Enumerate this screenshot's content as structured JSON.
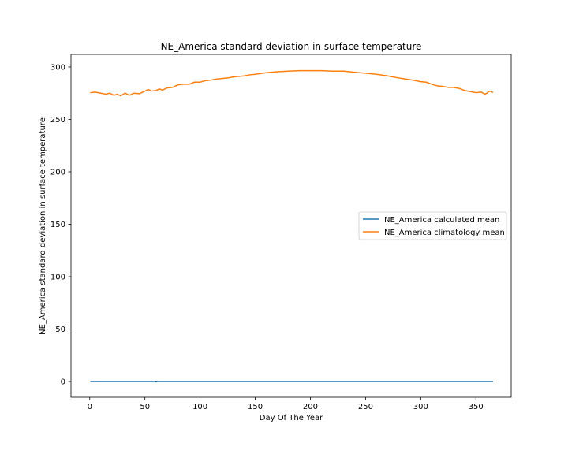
{
  "chart_data": {
    "type": "line",
    "title": "NE_America standard deviation in surface temperature",
    "xlabel": "Day Of The Year",
    "ylabel": "NE_America standard deviation in surface temperature",
    "xlim": [
      -17,
      382
    ],
    "ylim": [
      -15,
      312
    ],
    "xticks": [
      0,
      50,
      100,
      150,
      200,
      250,
      300,
      350
    ],
    "yticks": [
      0,
      50,
      100,
      150,
      200,
      250,
      300
    ],
    "grid": false,
    "legend_position": "center-right",
    "series": [
      {
        "name": "NE_America calculated mean",
        "color": "#1f77b4",
        "x": [
          1,
          59,
          60,
          61,
          365
        ],
        "y": [
          0,
          0,
          -0.4,
          0,
          0
        ]
      },
      {
        "name": "NE_America climatology mean",
        "color": "#ff7f0e",
        "x": [
          1,
          5,
          10,
          15,
          18,
          22,
          25,
          28,
          32,
          36,
          40,
          45,
          50,
          53,
          56,
          60,
          63,
          66,
          70,
          75,
          80,
          85,
          90,
          95,
          100,
          105,
          110,
          115,
          120,
          125,
          130,
          135,
          140,
          145,
          150,
          160,
          170,
          180,
          190,
          200,
          210,
          220,
          230,
          240,
          250,
          260,
          270,
          280,
          290,
          300,
          305,
          310,
          315,
          320,
          325,
          330,
          335,
          340,
          345,
          350,
          355,
          358,
          360,
          362,
          365
        ],
        "y": [
          275.5,
          276,
          275,
          274,
          275,
          273,
          274,
          272.5,
          275,
          273,
          275,
          274.5,
          277,
          278.5,
          277,
          277.5,
          279,
          278,
          280,
          280.5,
          283,
          283.5,
          283.5,
          285.5,
          285.5,
          287,
          287.5,
          288.5,
          289,
          289.5,
          290.5,
          291,
          291.5,
          292.5,
          293,
          294.5,
          295.5,
          296,
          296.5,
          296.5,
          296.5,
          296,
          296,
          295,
          294,
          293,
          291.5,
          289.5,
          288,
          286,
          285.5,
          283.5,
          282,
          281.5,
          280.5,
          280.5,
          279.5,
          277.5,
          276.5,
          275.5,
          276,
          274,
          275,
          277,
          276
        ]
      }
    ]
  }
}
